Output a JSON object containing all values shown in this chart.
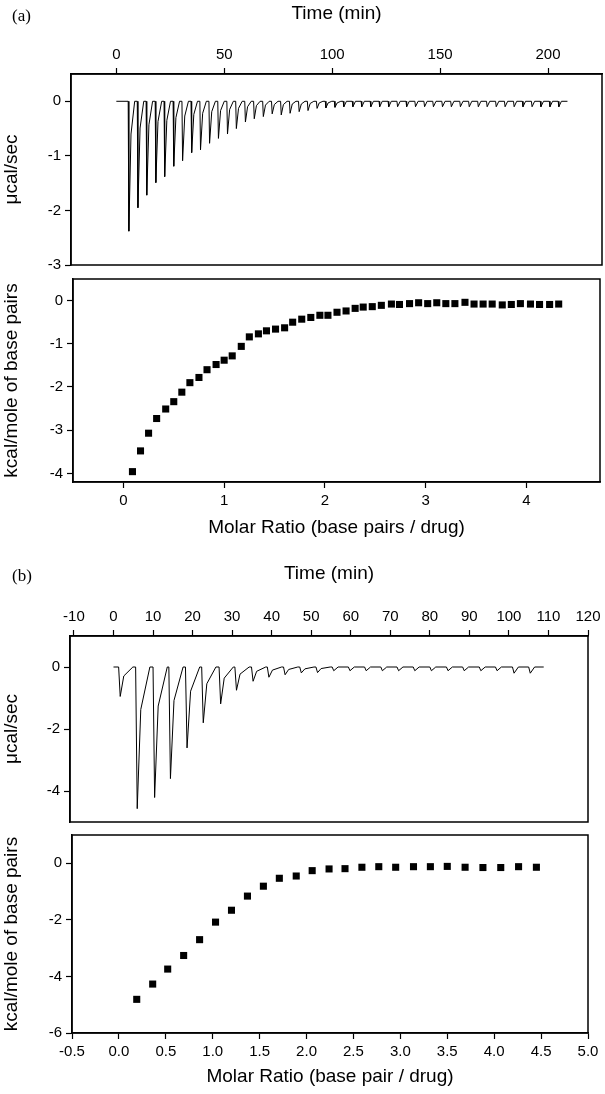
{
  "chart_data": [
    {
      "type": "line",
      "annotations": [
        "(a)"
      ],
      "xlabel": "Time (min)",
      "ylabel": "μcal/sec",
      "xlim": [
        -21,
        225
      ],
      "xticks": [
        0,
        50,
        100,
        150,
        200
      ],
      "ylim": [
        -3,
        0.5
      ],
      "yticks": [
        0,
        -1,
        -2,
        -3
      ],
      "marker": "none",
      "color": "#000000",
      "x": [
        0,
        5.5,
        5.8,
        6.8,
        8.5,
        9.7,
        10,
        11,
        12.7,
        13.8,
        14.1,
        15.1,
        16.8,
        18,
        18.3,
        19.3,
        21,
        22.1,
        22.4,
        23.4,
        25.1,
        26.3,
        26.6,
        27.6,
        29.3,
        30.4,
        30.7,
        31.7,
        33.4,
        34.6,
        34.9,
        35.9,
        37.6,
        38.7,
        39,
        40,
        41.7,
        42.9,
        43.2,
        44.2,
        45.9,
        47,
        47.3,
        48.3,
        50,
        51.2,
        51.5,
        52.5,
        54.2,
        55.3,
        55.6,
        56.6,
        58.3,
        59.5,
        59.8,
        60.8,
        62.5,
        63.6,
        63.9,
        64.9,
        66.6,
        67.8,
        68.1,
        69.1,
        70.8,
        71.9,
        72.2,
        73.2,
        74.9,
        76.1,
        76.4,
        77.4,
        79.1,
        80.2,
        80.5,
        81.5,
        83.2,
        84.4,
        84.7,
        85.7,
        87.4,
        88.5,
        88.8,
        89.8,
        91.5,
        92.7,
        93,
        94,
        95.7,
        96.8,
        97.1,
        98.1,
        99.8,
        101,
        101.3,
        102.3,
        104,
        105.1,
        105.4,
        106.6,
        109.3,
        109.6,
        110.8,
        113.4,
        113.7,
        114.9,
        117.6,
        117.9,
        119.1,
        121.7,
        122,
        123.2,
        125.9,
        126.2,
        127.4,
        130,
        130.3,
        131.5,
        134.2,
        134.5,
        135.7,
        138.3,
        138.6,
        139.8,
        142.5,
        142.8,
        144,
        146.6,
        146.9,
        148.1,
        150.8,
        151.1,
        152.3,
        154.9,
        155.2,
        156.4,
        159.1,
        159.4,
        160.6,
        163.2,
        163.5,
        164.7,
        167.4,
        167.7,
        168.9,
        171.5,
        171.8,
        173,
        175.7,
        176,
        177.2,
        179.8,
        180.1,
        181.3,
        184,
        184.3,
        185.5,
        188.1,
        188.4,
        189.6,
        192.3,
        192.6,
        193.8,
        196.4,
        196.7,
        197.9,
        200.6,
        200.9,
        202.1,
        204.7,
        205,
        206.2,
        209
      ],
      "values": [
        0,
        0,
        -2.38,
        -0.6,
        0,
        0,
        -1.95,
        -0.49,
        0,
        0,
        -1.72,
        -0.43,
        0,
        0,
        -1.49,
        -0.37,
        0,
        0,
        -1.38,
        -0.35,
        0,
        0,
        -1.19,
        -0.3,
        0,
        0,
        -1.09,
        -0.27,
        0,
        0,
        -0.94,
        -0.24,
        0,
        0,
        -0.89,
        -0.22,
        0,
        0,
        -0.77,
        -0.19,
        0,
        0,
        -0.68,
        -0.17,
        0,
        0,
        -0.6,
        -0.15,
        0,
        0,
        -0.5,
        -0.13,
        0,
        0,
        -0.38,
        -0.1,
        0,
        0,
        -0.32,
        -0.08,
        0,
        0,
        -0.28,
        -0.07,
        0,
        0,
        -0.23,
        -0.06,
        0,
        0,
        -0.25,
        -0.06,
        0,
        0,
        -0.22,
        -0.05,
        0,
        0,
        -0.19,
        -0.05,
        0,
        0,
        -0.17,
        -0.04,
        0,
        0,
        -0.13,
        -0.03,
        0,
        0,
        -0.12,
        -0.03,
        0,
        0,
        -0.11,
        -0.03,
        0,
        0,
        -0.1,
        0,
        0,
        -0.1,
        0,
        0,
        -0.1,
        0,
        0,
        -0.1,
        0,
        0,
        -0.1,
        0,
        0,
        -0.1,
        0,
        0,
        -0.1,
        0,
        0,
        -0.1,
        0,
        0,
        -0.1,
        0,
        0,
        -0.1,
        0,
        0,
        -0.1,
        0,
        0,
        -0.1,
        0,
        0,
        -0.1,
        0,
        0,
        -0.1,
        0,
        0,
        -0.1,
        0,
        0,
        -0.1,
        0,
        0,
        -0.1,
        0,
        0,
        -0.1,
        0,
        0,
        -0.1,
        0,
        0,
        -0.1,
        0,
        0,
        -0.1,
        0,
        0,
        -0.1,
        0,
        0,
        -0.1,
        0,
        0,
        -0.1,
        0,
        0,
        -0.1,
        0,
        0
      ]
    },
    {
      "type": "scatter",
      "xlabel": "Molar Ratio (base pairs / drug)",
      "ylabel": "kcal/mole of base pairs",
      "xlim": [
        -0.5,
        4.73
      ],
      "xticks": [
        0,
        1,
        2,
        3,
        4
      ],
      "ylim": [
        -4.2,
        0.5
      ],
      "yticks": [
        0,
        -1,
        -2,
        -3,
        -4
      ],
      "marker": "square",
      "color": "#000000",
      "x": [
        0.09,
        0.17,
        0.25,
        0.33,
        0.42,
        0.5,
        0.58,
        0.66,
        0.75,
        0.83,
        0.92,
        1.0,
        1.08,
        1.17,
        1.25,
        1.34,
        1.42,
        1.51,
        1.6,
        1.68,
        1.77,
        1.86,
        1.95,
        2.03,
        2.12,
        2.21,
        2.3,
        2.38,
        2.47,
        2.56,
        2.66,
        2.74,
        2.84,
        2.93,
        3.02,
        3.11,
        3.2,
        3.29,
        3.39,
        3.48,
        3.57,
        3.66,
        3.76,
        3.85,
        3.94,
        4.04,
        4.13,
        4.23,
        4.32
      ],
      "values": [
        -3.96,
        -3.48,
        -3.07,
        -2.73,
        -2.51,
        -2.34,
        -2.12,
        -1.9,
        -1.78,
        -1.6,
        -1.48,
        -1.38,
        -1.28,
        -1.06,
        -0.84,
        -0.77,
        -0.7,
        -0.66,
        -0.63,
        -0.5,
        -0.43,
        -0.39,
        -0.34,
        -0.34,
        -0.27,
        -0.24,
        -0.18,
        -0.15,
        -0.14,
        -0.11,
        -0.08,
        -0.09,
        -0.07,
        -0.05,
        -0.07,
        -0.05,
        -0.07,
        -0.07,
        -0.04,
        -0.08,
        -0.08,
        -0.08,
        -0.1,
        -0.09,
        -0.07,
        -0.08,
        -0.09,
        -0.09,
        -0.08
      ]
    },
    {
      "type": "line",
      "annotations": [
        "(b)"
      ],
      "xlabel": "Time (min)",
      "ylabel": "μcal/sec",
      "xlim": [
        -11,
        120
      ],
      "xticks": [
        -10,
        0,
        10,
        20,
        30,
        40,
        50,
        60,
        70,
        80,
        90,
        100,
        110,
        120
      ],
      "ylim": [
        -5,
        1
      ],
      "yticks": [
        0,
        -2,
        -4
      ],
      "marker": "none",
      "color": "#000000",
      "x": [
        0,
        1.3,
        1.7,
        2.6,
        4.9,
        5.6,
        6,
        6.9,
        9.2,
        10,
        10.4,
        11.3,
        13.6,
        14,
        14.4,
        15.3,
        17.6,
        18.2,
        18.6,
        19.5,
        21.8,
        22.3,
        22.7,
        23.6,
        25.9,
        26.7,
        27.1,
        28,
        30.3,
        30.7,
        31.1,
        32,
        34.3,
        34.9,
        35.3,
        36.2,
        38.5,
        38.9,
        39.3,
        40.2,
        42.5,
        43,
        43.4,
        44.3,
        46.6,
        47.1,
        47.5,
        48.4,
        50.7,
        51.2,
        51.6,
        52.5,
        54.8,
        55.3,
        55.7,
        56.8,
        59.4,
        59.8,
        60.9,
        63.5,
        63.9,
        65,
        67.6,
        68,
        69.1,
        71.7,
        72.1,
        73.2,
        75.8,
        76.2,
        77.3,
        80,
        80.4,
        81.5,
        84.2,
        84.6,
        85.7,
        88.3,
        88.7,
        89.8,
        92.5,
        92.9,
        94,
        96.6,
        97,
        98.1,
        100.9,
        101.3,
        102.4,
        105,
        105.4,
        106.5,
        108.8
      ],
      "values": [
        0,
        0,
        -0.95,
        -0.29,
        0,
        0,
        -4.57,
        -1.37,
        0,
        0,
        -4.21,
        -1.26,
        0,
        0,
        -3.6,
        -1.08,
        0,
        0,
        -2.61,
        -0.78,
        0,
        0,
        -1.8,
        -0.54,
        0,
        0,
        -1.19,
        -0.36,
        0,
        0,
        -0.75,
        -0.23,
        0,
        0,
        -0.46,
        -0.14,
        0,
        0,
        -0.33,
        -0.1,
        0,
        0,
        -0.25,
        -0.08,
        0,
        0,
        -0.19,
        -0.06,
        0,
        0,
        -0.18,
        -0.05,
        0,
        0,
        -0.12,
        0,
        0,
        -0.12,
        0,
        0,
        -0.12,
        0,
        0,
        -0.12,
        0,
        0,
        -0.12,
        0,
        0,
        -0.12,
        0,
        0,
        -0.12,
        0,
        0,
        -0.12,
        0,
        0,
        -0.12,
        0,
        0,
        -0.12,
        0,
        0,
        -0.12,
        0,
        0,
        -0.2,
        0,
        0,
        -0.2,
        0,
        0
      ]
    },
    {
      "type": "scatter",
      "xlabel": "Molar Ratio (base pair / drug)",
      "ylabel": "kcal/mole of base pairs",
      "xlim": [
        -0.5,
        5
      ],
      "xticks": [
        -0.5,
        {
          "value": 0,
          "label": "0.0"
        },
        0.5,
        {
          "value": 1,
          "label": "1.0"
        },
        1.5,
        {
          "value": 2,
          "label": "2.0"
        },
        2.5,
        {
          "value": 3,
          "label": "3.0"
        },
        3.5,
        {
          "value": 4,
          "label": "4.0"
        },
        4.5,
        {
          "value": 5,
          "label": "5.0"
        }
      ],
      "ylim": [
        -6,
        1
      ],
      "yticks": [
        0,
        -2,
        -4,
        -6
      ],
      "marker": "square",
      "color": "#000000",
      "x": [
        0.19,
        0.36,
        0.52,
        0.69,
        0.86,
        1.03,
        1.2,
        1.37,
        1.54,
        1.71,
        1.89,
        2.06,
        2.24,
        2.41,
        2.59,
        2.77,
        2.95,
        3.14,
        3.32,
        3.5,
        3.69,
        3.88,
        4.07,
        4.26,
        4.45
      ],
      "values": [
        -4.81,
        -4.27,
        -3.74,
        -3.26,
        -2.7,
        -2.08,
        -1.66,
        -1.16,
        -0.81,
        -0.53,
        -0.45,
        -0.26,
        -0.2,
        -0.19,
        -0.14,
        -0.12,
        -0.14,
        -0.12,
        -0.12,
        -0.11,
        -0.14,
        -0.15,
        -0.15,
        -0.12,
        -0.14
      ]
    }
  ]
}
